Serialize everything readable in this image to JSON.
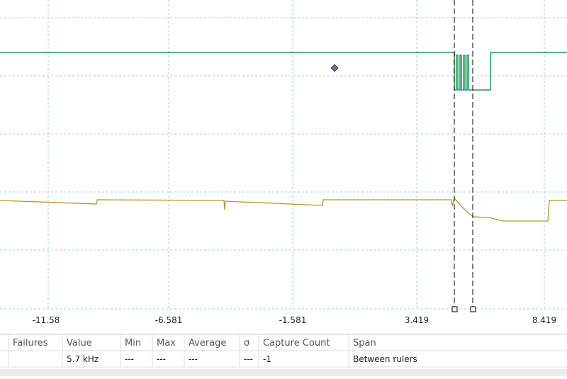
{
  "axis": {
    "x_labels": [
      "-11.58",
      "-6.581",
      "-1.581",
      "3.419",
      "8.419"
    ]
  },
  "table": {
    "headers": [
      "Failures",
      "Value",
      "Min",
      "Max",
      "Average",
      "σ",
      "Capture Count",
      "Span"
    ],
    "row": {
      "value": "5.7 kHz",
      "min": "---",
      "max": "---",
      "average": "---",
      "sigma": "---",
      "capture_count": "-1",
      "span": "Between rulers"
    }
  }
}
